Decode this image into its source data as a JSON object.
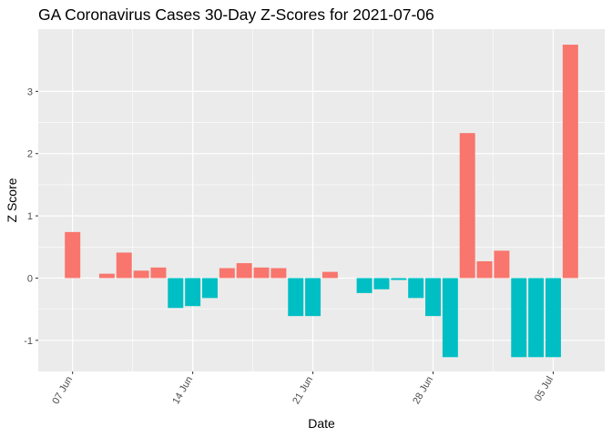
{
  "chart_data": {
    "type": "bar",
    "title": "GA Coronavirus Cases 30-Day Z-Scores for 2021-07-06",
    "xlabel": "Date",
    "ylabel": "Z Score",
    "x_tick_labels": [
      "07 Jun",
      "14 Jun",
      "21 Jun",
      "28 Jun",
      "05 Jul"
    ],
    "x_tick_dates": [
      "2021-06-07",
      "2021-06-14",
      "2021-06-21",
      "2021-06-28",
      "2021-07-05"
    ],
    "y_ticks": [
      -1,
      0,
      1,
      2,
      3
    ],
    "ylim": [
      -1.5,
      4.0
    ],
    "xlim": [
      "2021-06-05",
      "2021-07-08"
    ],
    "grid": true,
    "colors": {
      "positive": "#F8766D",
      "negative": "#00BFC4",
      "panel": "#EBEBEB",
      "grid": "#FFFFFF"
    },
    "dates": [
      "2021-06-07",
      "2021-06-08",
      "2021-06-09",
      "2021-06-10",
      "2021-06-11",
      "2021-06-12",
      "2021-06-13",
      "2021-06-14",
      "2021-06-15",
      "2021-06-16",
      "2021-06-17",
      "2021-06-18",
      "2021-06-19",
      "2021-06-20",
      "2021-06-21",
      "2021-06-22",
      "2021-06-23",
      "2021-06-24",
      "2021-06-25",
      "2021-06-26",
      "2021-06-27",
      "2021-06-28",
      "2021-06-29",
      "2021-06-30",
      "2021-07-01",
      "2021-07-02",
      "2021-07-03",
      "2021-07-04",
      "2021-07-05",
      "2021-07-06"
    ],
    "values": [
      0.74,
      0.0,
      0.07,
      0.41,
      0.12,
      0.17,
      -0.48,
      -0.45,
      -0.32,
      0.16,
      0.24,
      0.17,
      0.16,
      -0.61,
      -0.61,
      0.1,
      0.0,
      -0.24,
      -0.18,
      -0.03,
      -0.32,
      -0.61,
      -1.27,
      2.33,
      0.27,
      0.44,
      -1.27,
      -1.27,
      -1.27,
      3.75
    ]
  }
}
